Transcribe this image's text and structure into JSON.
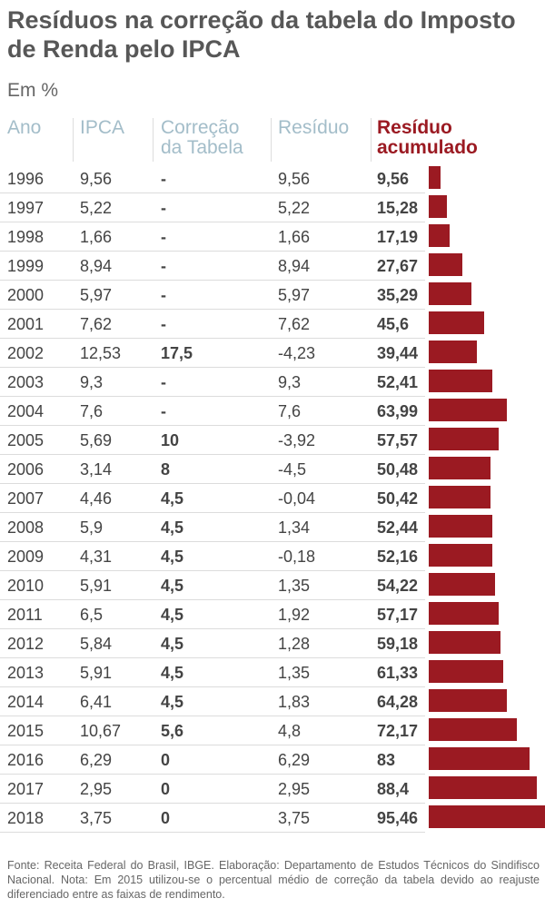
{
  "chart_data": {
    "type": "table",
    "title": "Resíduos na correção da tabela do Imposto de Renda pelo IPCA",
    "subtitle": "Em %",
    "columns": [
      "Ano",
      "IPCA",
      "Correção da Tabela",
      "Resíduo",
      "Resíduo acumulado"
    ],
    "header_colors": {
      "muted": "#a3bdc9",
      "accent": "#9b1a22"
    },
    "bar_color": "#9b1a22",
    "bar_max": 95.46,
    "rows": [
      {
        "ano": "1996",
        "ipca": "9,56",
        "correcao": "-",
        "residuo": "9,56",
        "acumulado": "9,56",
        "value": 9.56
      },
      {
        "ano": "1997",
        "ipca": "5,22",
        "correcao": "-",
        "residuo": "5,22",
        "acumulado": "15,28",
        "value": 15.28
      },
      {
        "ano": "1998",
        "ipca": "1,66",
        "correcao": "-",
        "residuo": "1,66",
        "acumulado": "17,19",
        "value": 17.19
      },
      {
        "ano": "1999",
        "ipca": "8,94",
        "correcao": "-",
        "residuo": "8,94",
        "acumulado": "27,67",
        "value": 27.67
      },
      {
        "ano": "2000",
        "ipca": "5,97",
        "correcao": "-",
        "residuo": "5,97",
        "acumulado": "35,29",
        "value": 35.29
      },
      {
        "ano": "2001",
        "ipca": "7,62",
        "correcao": "-",
        "residuo": "7,62",
        "acumulado": "45,6",
        "value": 45.6
      },
      {
        "ano": "2002",
        "ipca": "12,53",
        "correcao": "17,5",
        "residuo": "-4,23",
        "acumulado": "39,44",
        "value": 39.44
      },
      {
        "ano": "2003",
        "ipca": "9,3",
        "correcao": "-",
        "residuo": "9,3",
        "acumulado": "52,41",
        "value": 52.41
      },
      {
        "ano": "2004",
        "ipca": "7,6",
        "correcao": "-",
        "residuo": "7,6",
        "acumulado": "63,99",
        "value": 63.99
      },
      {
        "ano": "2005",
        "ipca": "5,69",
        "correcao": "10",
        "residuo": "-3,92",
        "acumulado": "57,57",
        "value": 57.57
      },
      {
        "ano": "2006",
        "ipca": "3,14",
        "correcao": "8",
        "residuo": "-4,5",
        "acumulado": "50,48",
        "value": 50.48
      },
      {
        "ano": "2007",
        "ipca": "4,46",
        "correcao": "4,5",
        "residuo": "-0,04",
        "acumulado": "50,42",
        "value": 50.42
      },
      {
        "ano": "2008",
        "ipca": "5,9",
        "correcao": "4,5",
        "residuo": "1,34",
        "acumulado": "52,44",
        "value": 52.44
      },
      {
        "ano": "2009",
        "ipca": "4,31",
        "correcao": "4,5",
        "residuo": "-0,18",
        "acumulado": "52,16",
        "value": 52.16
      },
      {
        "ano": "2010",
        "ipca": "5,91",
        "correcao": "4,5",
        "residuo": "1,35",
        "acumulado": "54,22",
        "value": 54.22
      },
      {
        "ano": "2011",
        "ipca": "6,5",
        "correcao": "4,5",
        "residuo": "1,92",
        "acumulado": "57,17",
        "value": 57.17
      },
      {
        "ano": "2012",
        "ipca": "5,84",
        "correcao": "4,5",
        "residuo": "1,28",
        "acumulado": "59,18",
        "value": 59.18
      },
      {
        "ano": "2013",
        "ipca": "5,91",
        "correcao": "4,5",
        "residuo": "1,35",
        "acumulado": "61,33",
        "value": 61.33
      },
      {
        "ano": "2014",
        "ipca": "6,41",
        "correcao": "4,5",
        "residuo": "1,83",
        "acumulado": "64,28",
        "value": 64.28
      },
      {
        "ano": "2015",
        "ipca": "10,67",
        "correcao": "5,6",
        "residuo": "4,8",
        "acumulado": "72,17",
        "value": 72.17
      },
      {
        "ano": "2016",
        "ipca": "6,29",
        "correcao": "0",
        "residuo": "6,29",
        "acumulado": "83",
        "value": 83
      },
      {
        "ano": "2017",
        "ipca": "2,95",
        "correcao": "0",
        "residuo": "2,95",
        "acumulado": "88,4",
        "value": 88.4
      },
      {
        "ano": "2018",
        "ipca": "3,75",
        "correcao": "0",
        "residuo": "3,75",
        "acumulado": "95,46",
        "value": 95.46
      }
    ],
    "footer": "Fonte: Receita Federal do Brasil, IBGE. Elaboração: Departamento de Estudos Técnicos do Sindifisco Nacional. Nota: Em 2015 utilizou-se o percentual médio de correção da tabela devido ao reajuste diferenciado entre as faixas de rendimento."
  },
  "header": {
    "ano": "Ano",
    "ipca": "IPCA",
    "correcao_line1": "Correção",
    "correcao_line2": "da Tabela",
    "residuo": "Resíduo",
    "acumulado_line1": "Resíduo",
    "acumulado_line2": "acumulado"
  }
}
